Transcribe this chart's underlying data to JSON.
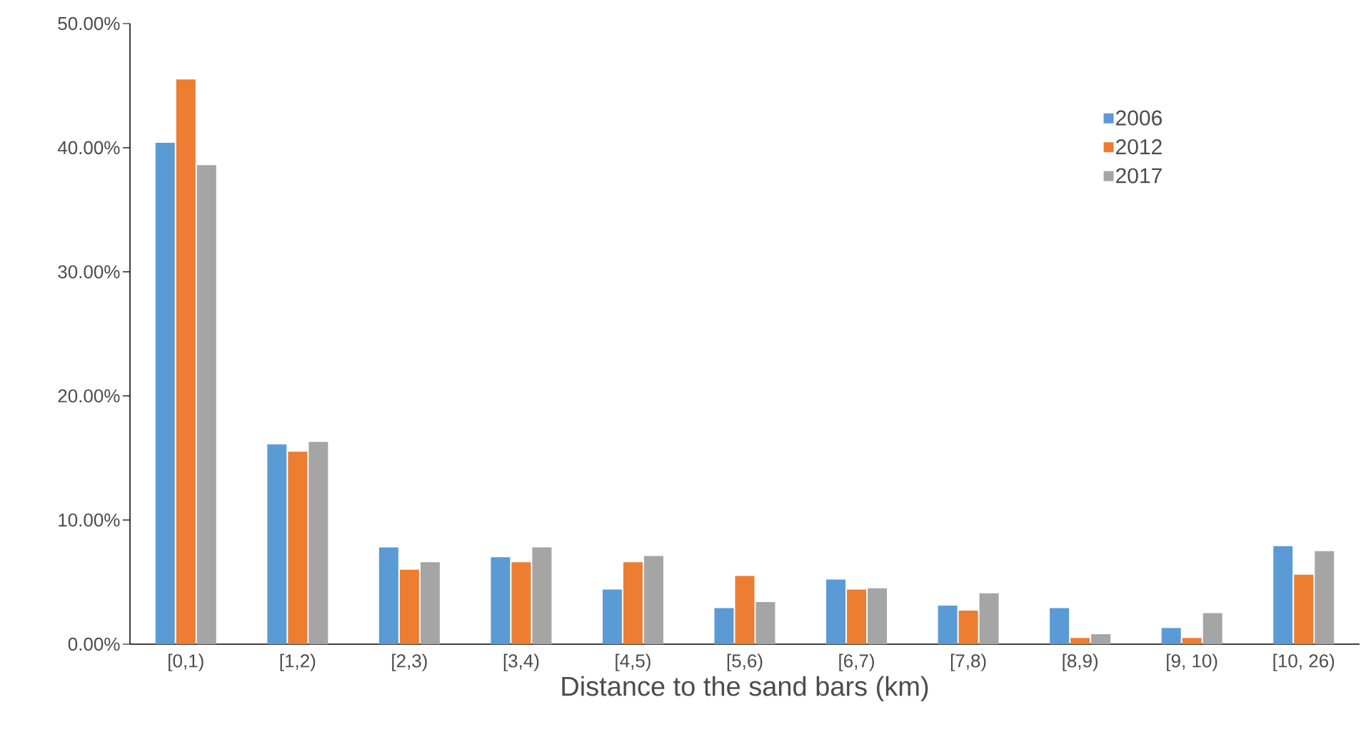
{
  "chart_data": {
    "type": "bar",
    "xlabel": "Distance to the sand bars (km)",
    "categories": [
      "[0,1)",
      "[1,2)",
      "[2,3)",
      "[3,4)",
      "[4,5)",
      "[5,6)",
      "[6,7)",
      "[7,8)",
      "[8,9)",
      "[9, 10)",
      "[10, 26)"
    ],
    "series": [
      {
        "name": "2006",
        "color": "#5b9bd5",
        "values": [
          40.4,
          16.1,
          7.8,
          7.0,
          4.4,
          2.9,
          5.2,
          3.1,
          2.9,
          1.3,
          7.9
        ]
      },
      {
        "name": "2012",
        "color": "#ed7d31",
        "values": [
          45.5,
          15.5,
          6.0,
          6.6,
          6.6,
          5.5,
          4.4,
          2.7,
          0.5,
          0.5,
          5.6
        ]
      },
      {
        "name": "2017",
        "color": "#a5a5a5",
        "values": [
          38.6,
          16.3,
          6.6,
          7.8,
          7.1,
          3.4,
          4.5,
          4.1,
          0.8,
          2.5,
          7.5
        ]
      }
    ],
    "ylim": [
      0,
      50
    ],
    "yticks": [
      {
        "value": 0,
        "label": "0.00%"
      },
      {
        "value": 10,
        "label": "10.00%"
      },
      {
        "value": 20,
        "label": "20.00%"
      },
      {
        "value": 30,
        "label": "30.00%"
      },
      {
        "value": 40,
        "label": "40.00%"
      },
      {
        "value": 50,
        "label": "50.00%"
      }
    ],
    "grid": false,
    "legend": "top right"
  }
}
